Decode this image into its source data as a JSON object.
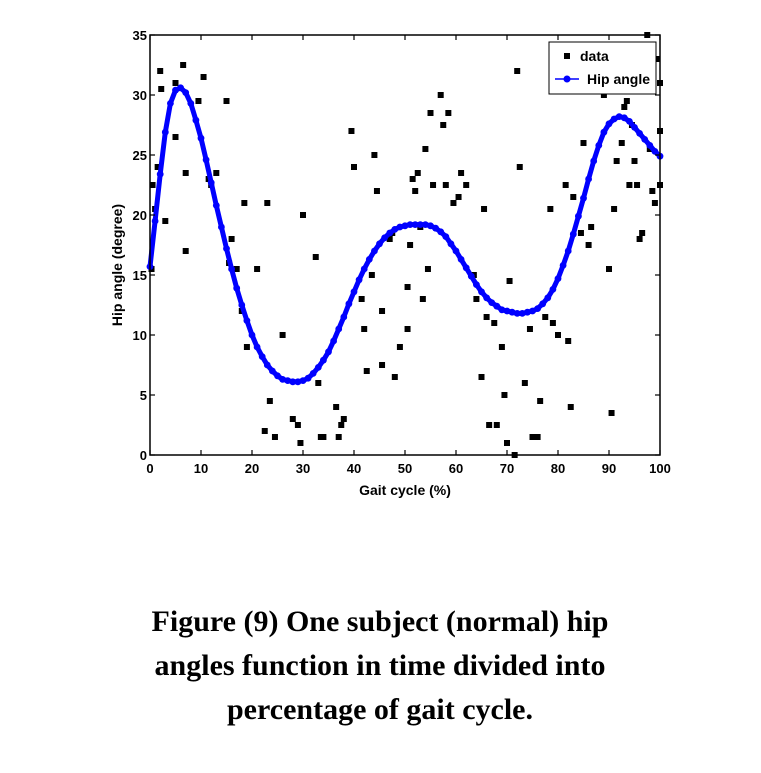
{
  "chart_data": {
    "type": "scatter",
    "xlabel": "Gait cycle (%)",
    "ylabel": "Hip angle (degree)",
    "xlim": [
      0,
      100
    ],
    "ylim": [
      0,
      35
    ],
    "xticks": [
      0,
      10,
      20,
      30,
      40,
      50,
      60,
      70,
      80,
      90,
      100
    ],
    "yticks": [
      0,
      5,
      10,
      15,
      20,
      25,
      30,
      35
    ],
    "grid": false,
    "legend_position": "top-right",
    "legend": [
      "data",
      "Hip angle"
    ],
    "series": [
      {
        "name": "data",
        "kind": "scatter",
        "marker": "square",
        "color": "#000000",
        "points": [
          [
            0.3,
            15.5
          ],
          [
            0.5,
            22.5
          ],
          [
            1.0,
            20.5
          ],
          [
            1.5,
            24.0
          ],
          [
            2.0,
            32.0
          ],
          [
            2.2,
            30.5
          ],
          [
            3.0,
            19.5
          ],
          [
            5.0,
            26.5
          ],
          [
            5.0,
            31.0
          ],
          [
            6.5,
            32.5
          ],
          [
            7.0,
            23.5
          ],
          [
            7.0,
            17.0
          ],
          [
            9.5,
            29.5
          ],
          [
            10.5,
            31.5
          ],
          [
            11.5,
            23.0
          ],
          [
            12.0,
            22.5
          ],
          [
            13.0,
            23.5
          ],
          [
            15.0,
            29.5
          ],
          [
            15.5,
            16.0
          ],
          [
            16.0,
            18.0
          ],
          [
            17.0,
            15.5
          ],
          [
            18.0,
            12.0
          ],
          [
            18.5,
            21.0
          ],
          [
            19.0,
            9.0
          ],
          [
            21.0,
            15.5
          ],
          [
            22.5,
            2.0
          ],
          [
            23.0,
            21.0
          ],
          [
            23.5,
            4.5
          ],
          [
            24.5,
            1.5
          ],
          [
            26.0,
            10.0
          ],
          [
            28.0,
            3.0
          ],
          [
            29.0,
            2.5
          ],
          [
            29.5,
            1.0
          ],
          [
            30.0,
            20.0
          ],
          [
            32.5,
            16.5
          ],
          [
            33.0,
            6.0
          ],
          [
            33.5,
            1.5
          ],
          [
            34.0,
            1.5
          ],
          [
            36.5,
            4.0
          ],
          [
            37.0,
            1.5
          ],
          [
            37.5,
            2.5
          ],
          [
            38.0,
            3.0
          ],
          [
            39.5,
            27.0
          ],
          [
            40.0,
            24.0
          ],
          [
            41.5,
            13.0
          ],
          [
            42.0,
            10.5
          ],
          [
            42.5,
            7.0
          ],
          [
            43.5,
            15.0
          ],
          [
            44.0,
            25.0
          ],
          [
            44.5,
            22.0
          ],
          [
            45.5,
            12.0
          ],
          [
            45.5,
            7.5
          ],
          [
            47.0,
            18.0
          ],
          [
            47.5,
            18.5
          ],
          [
            48.0,
            6.5
          ],
          [
            49.0,
            9.0
          ],
          [
            50.5,
            14.0
          ],
          [
            50.5,
            10.5
          ],
          [
            51.0,
            17.5
          ],
          [
            51.5,
            23.0
          ],
          [
            52.0,
            22.0
          ],
          [
            52.5,
            23.5
          ],
          [
            53.0,
            19.0
          ],
          [
            53.5,
            13.0
          ],
          [
            54.0,
            25.5
          ],
          [
            54.5,
            15.5
          ],
          [
            55.0,
            28.5
          ],
          [
            55.5,
            22.5
          ],
          [
            57.0,
            30.0
          ],
          [
            57.5,
            27.5
          ],
          [
            58.0,
            22.5
          ],
          [
            58.5,
            28.5
          ],
          [
            59.5,
            21.0
          ],
          [
            60.5,
            21.5
          ],
          [
            61.0,
            23.5
          ],
          [
            62.0,
            22.5
          ],
          [
            63.5,
            15.0
          ],
          [
            64.0,
            13.0
          ],
          [
            65.0,
            6.5
          ],
          [
            65.5,
            20.5
          ],
          [
            66.0,
            11.5
          ],
          [
            66.5,
            2.5
          ],
          [
            67.5,
            11.0
          ],
          [
            68.0,
            2.5
          ],
          [
            69.0,
            9.0
          ],
          [
            69.5,
            5.0
          ],
          [
            70.0,
            1.0
          ],
          [
            70.5,
            14.5
          ],
          [
            71.5,
            0.0
          ],
          [
            72.0,
            32.0
          ],
          [
            72.5,
            24.0
          ],
          [
            73.5,
            6.0
          ],
          [
            74.5,
            10.5
          ],
          [
            75.0,
            1.5
          ],
          [
            76.0,
            1.5
          ],
          [
            76.5,
            4.5
          ],
          [
            77.5,
            11.5
          ],
          [
            78.5,
            20.5
          ],
          [
            79.0,
            11.0
          ],
          [
            80.0,
            10.0
          ],
          [
            81.5,
            22.5
          ],
          [
            82.0,
            9.5
          ],
          [
            82.5,
            4.0
          ],
          [
            83.0,
            21.5
          ],
          [
            84.5,
            18.5
          ],
          [
            85.0,
            26.0
          ],
          [
            86.0,
            17.5
          ],
          [
            86.5,
            19.0
          ],
          [
            89.0,
            30.0
          ],
          [
            90.0,
            15.5
          ],
          [
            90.5,
            3.5
          ],
          [
            91.0,
            20.5
          ],
          [
            91.5,
            24.5
          ],
          [
            92.5,
            26.0
          ],
          [
            93.0,
            29.0
          ],
          [
            93.5,
            29.5
          ],
          [
            94.0,
            22.5
          ],
          [
            94.5,
            27.5
          ],
          [
            95.0,
            24.5
          ],
          [
            95.5,
            22.5
          ],
          [
            96.0,
            18.0
          ],
          [
            96.5,
            18.5
          ],
          [
            97.0,
            30.5
          ],
          [
            97.5,
            35.0
          ],
          [
            98.0,
            25.5
          ],
          [
            98.5,
            22.0
          ],
          [
            99.0,
            21.0
          ],
          [
            99.5,
            33.0
          ],
          [
            100.0,
            31.0
          ],
          [
            100.0,
            27.0
          ],
          [
            100.0,
            22.5
          ]
        ]
      },
      {
        "name": "Hip angle",
        "kind": "line",
        "marker": "circle",
        "color": "#0000ff",
        "x": [
          0,
          1,
          2,
          3,
          4,
          5,
          6,
          7,
          8,
          9,
          10,
          11,
          12,
          13,
          14,
          15,
          16,
          17,
          18,
          19,
          20,
          21,
          22,
          23,
          24,
          25,
          26,
          27,
          28,
          29,
          30,
          31,
          32,
          33,
          34,
          35,
          36,
          37,
          38,
          39,
          40,
          41,
          42,
          43,
          44,
          45,
          46,
          47,
          48,
          49,
          50,
          51,
          52,
          53,
          54,
          55,
          56,
          57,
          58,
          59,
          60,
          61,
          62,
          63,
          64,
          65,
          66,
          67,
          68,
          69,
          70,
          71,
          72,
          73,
          74,
          75,
          76,
          77,
          78,
          79,
          80,
          81,
          82,
          83,
          84,
          85,
          86,
          87,
          88,
          89,
          90,
          91,
          92,
          93,
          94,
          95,
          96,
          97,
          98,
          99,
          100
        ],
        "y": [
          15.7,
          19.5,
          23.4,
          26.9,
          29.3,
          30.4,
          30.6,
          30.2,
          29.3,
          27.9,
          26.4,
          24.6,
          22.7,
          20.8,
          19.0,
          17.2,
          15.5,
          13.9,
          12.5,
          11.2,
          10.0,
          9.0,
          8.2,
          7.5,
          7.0,
          6.6,
          6.3,
          6.2,
          6.1,
          6.1,
          6.2,
          6.4,
          6.8,
          7.3,
          7.9,
          8.6,
          9.5,
          10.5,
          11.5,
          12.6,
          13.6,
          14.6,
          15.5,
          16.3,
          17.0,
          17.6,
          18.1,
          18.5,
          18.8,
          19.0,
          19.1,
          19.2,
          19.2,
          19.2,
          19.2,
          19.1,
          18.9,
          18.6,
          18.2,
          17.6,
          17.0,
          16.3,
          15.6,
          14.9,
          14.2,
          13.6,
          13.1,
          12.7,
          12.4,
          12.1,
          12.0,
          11.9,
          11.8,
          11.8,
          11.9,
          12.0,
          12.2,
          12.6,
          13.1,
          13.8,
          14.7,
          15.8,
          17.0,
          18.4,
          19.9,
          21.4,
          23.0,
          24.5,
          25.8,
          26.9,
          27.6,
          28.0,
          28.2,
          28.1,
          27.8,
          27.3,
          26.8,
          26.3,
          25.8,
          25.3,
          24.9
        ]
      }
    ]
  },
  "caption": {
    "line1": "Figure (9) One subject (normal) hip",
    "line2": "angles function in time divided into",
    "line3": "percentage of gait cycle."
  }
}
